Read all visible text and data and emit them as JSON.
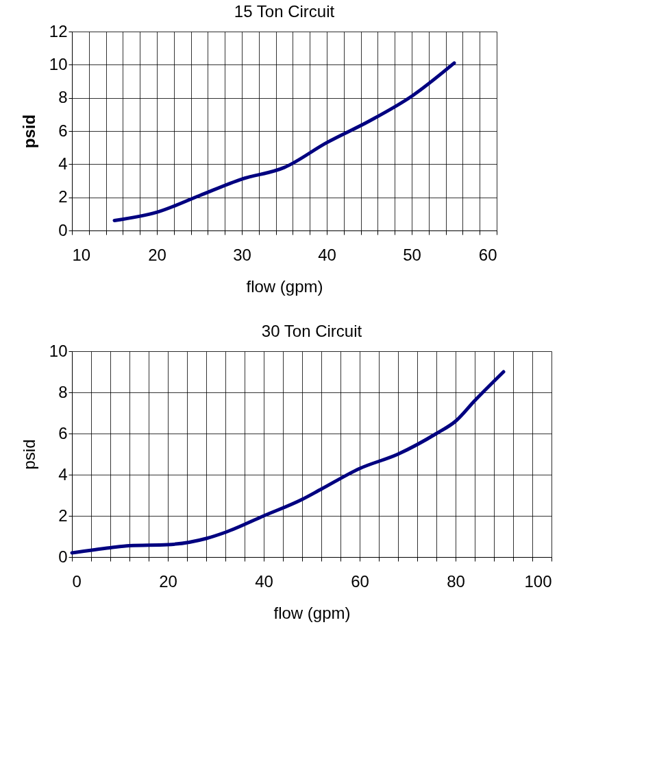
{
  "chart_data": [
    {
      "type": "line",
      "title": "15 Ton Circuit",
      "xlabel": "flow (gpm)",
      "ylabel": "psid",
      "x": [
        15,
        20,
        25,
        30,
        35,
        40,
        45,
        50,
        55
      ],
      "series": [
        {
          "color": "#000080",
          "values": [
            0.6,
            1.1,
            2.1,
            3.1,
            3.8,
            5.3,
            6.6,
            8.1,
            10.1
          ]
        }
      ],
      "xlim": [
        10,
        60
      ],
      "ylim": [
        0,
        12
      ],
      "xticks": [
        10,
        {
          "value": 12,
          "label": null
        },
        {
          "value": 14,
          "label": null
        },
        {
          "value": 16,
          "label": null
        },
        {
          "value": 18,
          "label": null
        },
        20,
        {
          "value": 22,
          "label": null
        },
        {
          "value": 24,
          "label": null
        },
        {
          "value": 26,
          "label": null
        },
        {
          "value": 28,
          "label": null
        },
        30,
        {
          "value": 32,
          "label": null
        },
        {
          "value": 34,
          "label": null
        },
        {
          "value": 36,
          "label": null
        },
        {
          "value": 38,
          "label": null
        },
        40,
        {
          "value": 42,
          "label": null
        },
        {
          "value": 44,
          "label": null
        },
        {
          "value": 46,
          "label": null
        },
        {
          "value": 48,
          "label": null
        },
        50,
        {
          "value": 52,
          "label": null
        },
        {
          "value": 54,
          "label": null
        },
        {
          "value": 56,
          "label": null
        },
        {
          "value": 58,
          "label": null
        },
        60
      ],
      "yticks": [
        0,
        2,
        4,
        6,
        8,
        10,
        12
      ],
      "grid": true,
      "marker": "none",
      "line_style": "solid"
    },
    {
      "type": "line",
      "title": "30 Ton Circuit",
      "xlabel": "flow (gpm)",
      "ylabel": "psid",
      "x": [
        0,
        8,
        12,
        20,
        28,
        32,
        40,
        48,
        52,
        60,
        68,
        76,
        80,
        84,
        90
      ],
      "series": [
        {
          "color": "#000080",
          "values": [
            0.2,
            0.45,
            0.55,
            0.6,
            0.9,
            1.2,
            2.0,
            2.8,
            3.3,
            4.3,
            5.0,
            6.0,
            6.6,
            7.6,
            9.0
          ]
        }
      ],
      "xlim": [
        0,
        100
      ],
      "ylim": [
        0,
        10
      ],
      "xticks": [
        0,
        {
          "value": 4,
          "label": null
        },
        {
          "value": 8,
          "label": null
        },
        {
          "value": 12,
          "label": null
        },
        {
          "value": 16,
          "label": null
        },
        20,
        {
          "value": 24,
          "label": null
        },
        {
          "value": 28,
          "label": null
        },
        {
          "value": 32,
          "label": null
        },
        {
          "value": 36,
          "label": null
        },
        40,
        {
          "value": 44,
          "label": null
        },
        {
          "value": 48,
          "label": null
        },
        {
          "value": 52,
          "label": null
        },
        {
          "value": 56,
          "label": null
        },
        60,
        {
          "value": 64,
          "label": null
        },
        {
          "value": 68,
          "label": null
        },
        {
          "value": 72,
          "label": null
        },
        {
          "value": 76,
          "label": null
        },
        80,
        {
          "value": 84,
          "label": null
        },
        {
          "value": 88,
          "label": null
        },
        {
          "value": 92,
          "label": null
        },
        {
          "value": 96,
          "label": null
        },
        100
      ],
      "yticks": [
        0,
        2,
        4,
        6,
        8,
        10
      ],
      "grid": true,
      "marker": "none",
      "line_style": "solid"
    }
  ]
}
